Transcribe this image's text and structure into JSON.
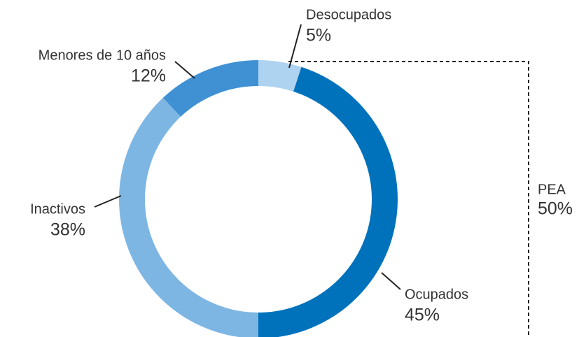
{
  "chart_data": {
    "type": "donut",
    "categories": [
      "Desocupados",
      "Ocupados",
      "Inactivos",
      "Menores de 10 años"
    ],
    "values": [
      5,
      45,
      38,
      12
    ],
    "value_labels": [
      "5%",
      "45%",
      "38%",
      "12%"
    ],
    "colors": [
      "#aed3f0",
      "#0072bc",
      "#7db6e3",
      "#3f91d3"
    ],
    "bracket": {
      "label": "PEA",
      "value": 50,
      "value_label": "50%"
    }
  }
}
